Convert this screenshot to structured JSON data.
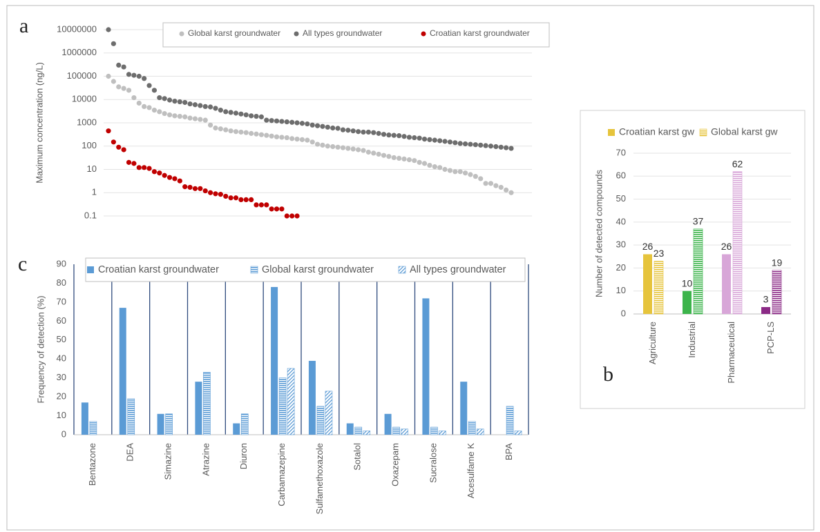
{
  "chart_data": [
    {
      "type": "scatter",
      "panel_label": "a",
      "y_label": "Maximum  concentration (ng/L)",
      "log_scale_y": true,
      "grid": true,
      "ylim": [
        0.1,
        10000000
      ],
      "yticks": [
        0.1,
        1,
        10,
        100,
        1000,
        10000,
        100000,
        1000000,
        10000000
      ],
      "series": [
        {
          "name": "Global karst groundwater",
          "color": "#bfbfbf",
          "values": [
            100000,
            60000,
            35000,
            30000,
            25000,
            12000,
            7000,
            5000,
            4500,
            3500,
            3000,
            2500,
            2200,
            2000,
            1900,
            1800,
            1600,
            1500,
            1400,
            1300,
            800,
            600,
            550,
            500,
            450,
            420,
            400,
            380,
            350,
            330,
            310,
            290,
            270,
            250,
            240,
            230,
            210,
            200,
            190,
            180,
            150,
            120,
            110,
            100,
            95,
            90,
            85,
            80,
            75,
            70,
            65,
            55,
            50,
            45,
            40,
            36,
            32,
            30,
            28,
            26,
            24,
            20,
            18,
            15,
            13,
            12,
            10,
            9,
            8,
            8,
            7,
            6,
            5,
            4,
            2.5,
            2.5,
            2,
            1.7,
            1.3,
            1
          ]
        },
        {
          "name": "All types groundwater",
          "color": "#6d6d6d",
          "values": [
            10000000,
            2500000,
            300000,
            250000,
            120000,
            110000,
            100000,
            80000,
            40000,
            25000,
            12000,
            11000,
            9500,
            8500,
            8000,
            7500,
            6500,
            6000,
            5500,
            5000,
            4800,
            4200,
            3500,
            3000,
            2800,
            2600,
            2400,
            2200,
            2000,
            1900,
            1800,
            1300,
            1250,
            1200,
            1150,
            1100,
            1050,
            1000,
            950,
            900,
            800,
            750,
            700,
            650,
            600,
            580,
            500,
            480,
            450,
            420,
            400,
            400,
            380,
            350,
            320,
            300,
            290,
            280,
            260,
            240,
            230,
            220,
            200,
            190,
            180,
            170,
            160,
            150,
            140,
            130,
            125,
            120,
            115,
            110,
            105,
            100,
            95,
            90,
            85,
            80
          ]
        },
        {
          "name": "Croatian karst groundwater",
          "color": "#c00000",
          "values": [
            450,
            150,
            90,
            70,
            20,
            18,
            12,
            12,
            11,
            8,
            7,
            5.5,
            4.5,
            4,
            3.2,
            1.8,
            1.7,
            1.5,
            1.5,
            1.2,
            1,
            0.9,
            0.85,
            0.7,
            0.6,
            0.6,
            0.5,
            0.5,
            0.5,
            0.3,
            0.3,
            0.3,
            0.2,
            0.2,
            0.2,
            0.1,
            0.1,
            0.1
          ]
        }
      ]
    },
    {
      "type": "bar",
      "panel_label": "b",
      "y_label": "Number of detected compounds",
      "grid": true,
      "show_value_labels": true,
      "ylim": [
        0,
        70
      ],
      "yticks": [
        0,
        10,
        20,
        30,
        40,
        50,
        60,
        70
      ],
      "categories": [
        "Agriculture",
        "Industrial",
        "Pharmaceutical",
        "PCP-LS"
      ],
      "series": [
        {
          "name": "Croatian karst gw",
          "pattern": "solid",
          "colors": [
            "#e6c43c",
            "#3cb44b",
            "#d8a6d8",
            "#8b2a86"
          ],
          "values": [
            26,
            10,
            26,
            3
          ]
        },
        {
          "name": "Global karst gw",
          "pattern": "horizontal",
          "colors": [
            "#e6c43c",
            "#3cb44b",
            "#d8a6d8",
            "#8b2a86"
          ],
          "values": [
            23,
            37,
            62,
            19
          ]
        }
      ]
    },
    {
      "type": "bar",
      "panel_label": "c",
      "y_label": "Frequency of detection (%)",
      "grid": false,
      "category_separators": true,
      "ylim": [
        0,
        90
      ],
      "yticks": [
        0,
        10,
        20,
        30,
        40,
        50,
        60,
        70,
        80,
        90
      ],
      "categories": [
        "Bentazone",
        "DEA",
        "Simazine",
        "Atrazine",
        "Diuron",
        "Carbamazepine",
        "Sulfamethoxazole",
        "Sotalol",
        "Oxazepam",
        "Sucralose",
        "Acesulfame K",
        "BPA"
      ],
      "series": [
        {
          "name": "Croatian karst groundwater",
          "pattern": "solid",
          "color": "#5b9bd5",
          "values": [
            17,
            67,
            11,
            28,
            6,
            78,
            39,
            6,
            11,
            72,
            28,
            null
          ]
        },
        {
          "name": "Global karst groundwater",
          "pattern": "horizontal",
          "color": "#5b9bd5",
          "values": [
            7,
            19,
            11,
            33,
            11,
            30,
            15,
            4,
            4,
            4,
            7,
            15
          ]
        },
        {
          "name": "All types groundwater",
          "pattern": "diagonal",
          "color": "#5b9bd5",
          "values": [
            null,
            null,
            null,
            null,
            null,
            35,
            23,
            2,
            3,
            2,
            3,
            2
          ]
        }
      ]
    }
  ]
}
